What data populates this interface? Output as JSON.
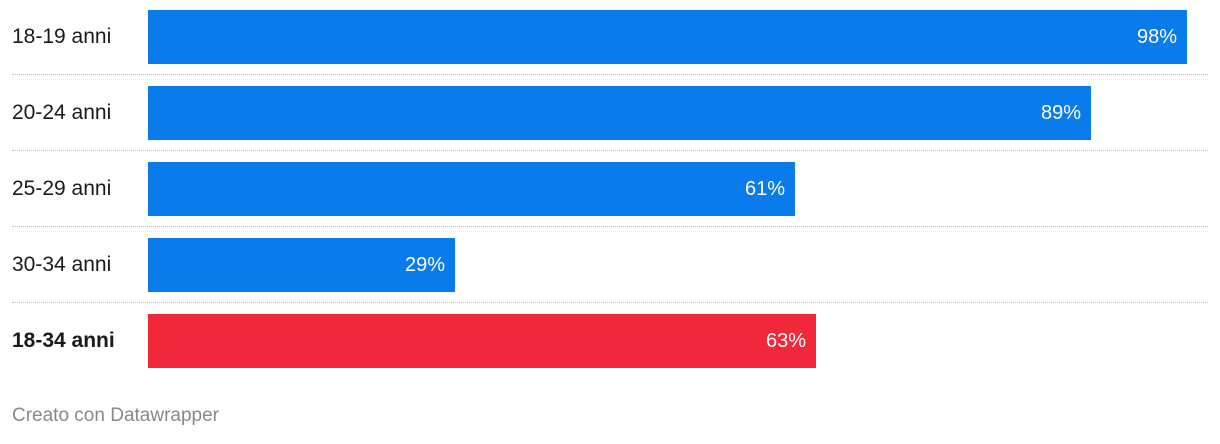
{
  "chart_data": {
    "type": "bar",
    "orientation": "horizontal",
    "categories": [
      "18-19 anni",
      "20-24 anni",
      "25-29 anni",
      "30-34 anni",
      "18-34 anni"
    ],
    "values": [
      98,
      89,
      61,
      29,
      63
    ],
    "value_labels": [
      "98%",
      "89%",
      "61%",
      "29%",
      "63%"
    ],
    "xlim": [
      0,
      100
    ],
    "bold_category": "18-34 anni",
    "colors": [
      "#0a7bea",
      "#0a7bea",
      "#0a7bea",
      "#0a7bea",
      "#f0283a"
    ],
    "grid": false
  },
  "footer": {
    "credit": "Creato con Datawrapper"
  }
}
